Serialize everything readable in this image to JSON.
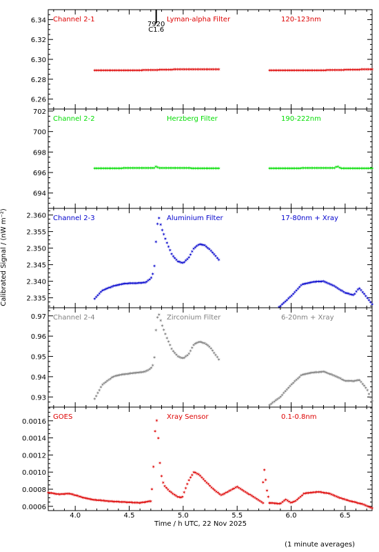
{
  "footer_note": "(1 minute averages)",
  "xlabel": "Time / h UTC, 22 Nov 2025",
  "ylabel": "Calibrated Signal / (nW m⁻²)",
  "event_marker": {
    "x": 4.75,
    "label_top": "7920",
    "label_bottom": "C1.6"
  },
  "chart_data": [
    {
      "type": "scatter",
      "channel": "Channel 2-1",
      "filter": "Lyman-alpha Filter",
      "band": "120-123nm",
      "color": "#dd0000",
      "xlim": [
        3.75,
        6.75
      ],
      "ylim": [
        6.25,
        6.35
      ],
      "xticks": [
        4.0,
        4.5,
        5.0,
        5.5,
        6.0,
        6.5
      ],
      "yticks": [
        "6.26",
        "6.28",
        "6.30",
        "6.32",
        "6.34"
      ],
      "segments": [
        {
          "x0": 4.18,
          "x1": 5.33,
          "n": 70,
          "keys": [
            [
              4.18,
              6.289
            ],
            [
              4.6,
              6.289
            ],
            [
              5.0,
              6.29
            ],
            [
              5.33,
              6.29
            ]
          ]
        },
        {
          "x0": 5.8,
          "x1": 6.75,
          "n": 58,
          "keys": [
            [
              5.8,
              6.289
            ],
            [
              6.3,
              6.289
            ],
            [
              6.75,
              6.29
            ]
          ]
        }
      ]
    },
    {
      "type": "scatter",
      "channel": "Channel 2-2",
      "filter": "Herzberg Filter",
      "band": "190-222nm",
      "color": "#00dd00",
      "xlim": [
        3.75,
        6.75
      ],
      "ylim": [
        692.5,
        702.2
      ],
      "xticks": [
        4.0,
        4.5,
        5.0,
        5.5,
        6.0,
        6.5
      ],
      "yticks": [
        "694",
        "696",
        "698",
        "700",
        "702"
      ],
      "segments": [
        {
          "x0": 4.18,
          "x1": 5.33,
          "n": 70,
          "keys": [
            [
              4.18,
              696.4
            ],
            [
              4.73,
              696.45
            ],
            [
              4.75,
              696.6
            ],
            [
              4.77,
              696.45
            ],
            [
              5.33,
              696.4
            ]
          ]
        },
        {
          "x0": 5.8,
          "x1": 6.75,
          "n": 58,
          "keys": [
            [
              5.8,
              696.4
            ],
            [
              6.4,
              696.45
            ],
            [
              6.43,
              696.6
            ],
            [
              6.46,
              696.4
            ],
            [
              6.75,
              696.4
            ]
          ]
        }
      ]
    },
    {
      "type": "scatter",
      "channel": "Channel 2-3",
      "filter": "Aluminium Filter",
      "band": "17-80nm + Xray",
      "color": "#0000cc",
      "xlim": [
        3.75,
        6.75
      ],
      "ylim": [
        2.332,
        2.362
      ],
      "xticks": [
        4.0,
        4.5,
        5.0,
        5.5,
        6.0,
        6.5
      ],
      "yticks": [
        "2.335",
        "2.340",
        "2.345",
        "2.350",
        "2.355",
        "2.360"
      ],
      "segments": [
        {
          "x0": 4.18,
          "x1": 5.33,
          "n": 80,
          "keys": [
            [
              4.18,
              2.3347
            ],
            [
              4.25,
              2.3372
            ],
            [
              4.35,
              2.3385
            ],
            [
              4.45,
              2.3393
            ],
            [
              4.55,
              2.3394
            ],
            [
              4.65,
              2.3396
            ],
            [
              4.7,
              2.3408
            ],
            [
              4.73,
              2.343
            ],
            [
              4.75,
              2.353
            ],
            [
              4.77,
              2.36
            ],
            [
              4.8,
              2.356
            ],
            [
              4.85,
              2.3515
            ],
            [
              4.9,
              2.3478
            ],
            [
              4.95,
              2.346
            ],
            [
              5.0,
              2.3455
            ],
            [
              5.05,
              2.347
            ],
            [
              5.1,
              2.35
            ],
            [
              5.15,
              2.3512
            ],
            [
              5.2,
              2.3508
            ],
            [
              5.25,
              2.3495
            ],
            [
              5.33,
              2.3465
            ]
          ]
        },
        {
          "x0": 5.8,
          "x1": 6.75,
          "n": 66,
          "keys": [
            [
              5.8,
              2.3305
            ],
            [
              5.9,
              2.3325
            ],
            [
              6.0,
              2.3355
            ],
            [
              6.1,
              2.339
            ],
            [
              6.2,
              2.3398
            ],
            [
              6.3,
              2.34
            ],
            [
              6.4,
              2.3385
            ],
            [
              6.5,
              2.3365
            ],
            [
              6.58,
              2.3358
            ],
            [
              6.63,
              2.338
            ],
            [
              6.7,
              2.3352
            ],
            [
              6.75,
              2.333
            ]
          ]
        }
      ]
    },
    {
      "type": "scatter",
      "channel": "Channel 2-4",
      "filter": "Zirconium Filter",
      "band": "6-20nm + Xray",
      "color": "#808080",
      "xlim": [
        3.75,
        6.75
      ],
      "ylim": [
        0.925,
        0.974
      ],
      "xticks": [
        4.0,
        4.5,
        5.0,
        5.5,
        6.0,
        6.5
      ],
      "yticks": [
        "0.93",
        "0.94",
        "0.95",
        "0.96",
        "0.97"
      ],
      "segments": [
        {
          "x0": 4.18,
          "x1": 5.33,
          "n": 80,
          "keys": [
            [
              4.18,
              0.929
            ],
            [
              4.25,
              0.936
            ],
            [
              4.35,
              0.94
            ],
            [
              4.45,
              0.9412
            ],
            [
              4.55,
              0.9418
            ],
            [
              4.65,
              0.9425
            ],
            [
              4.7,
              0.944
            ],
            [
              4.73,
              0.9465
            ],
            [
              4.75,
              0.965
            ],
            [
              4.77,
              0.972
            ],
            [
              4.8,
              0.966
            ],
            [
              4.85,
              0.959
            ],
            [
              4.9,
              0.953
            ],
            [
              4.95,
              0.95
            ],
            [
              5.0,
              0.949
            ],
            [
              5.05,
              0.951
            ],
            [
              5.1,
              0.956
            ],
            [
              5.15,
              0.9572
            ],
            [
              5.2,
              0.9565
            ],
            [
              5.25,
              0.9545
            ],
            [
              5.33,
              0.9485
            ]
          ]
        },
        {
          "x0": 5.8,
          "x1": 6.75,
          "n": 66,
          "keys": [
            [
              5.8,
              0.926
            ],
            [
              5.9,
              0.93
            ],
            [
              6.0,
              0.936
            ],
            [
              6.1,
              0.941
            ],
            [
              6.2,
              0.942
            ],
            [
              6.3,
              0.9425
            ],
            [
              6.4,
              0.9405
            ],
            [
              6.5,
              0.938
            ],
            [
              6.58,
              0.9378
            ],
            [
              6.63,
              0.9385
            ],
            [
              6.7,
              0.934
            ],
            [
              6.75,
              0.928
            ]
          ]
        }
      ]
    },
    {
      "type": "scatter",
      "channel": "GOES",
      "filter": "Xray Sensor",
      "band": "0.1-0.8nm",
      "color": "#dd0000",
      "xlim": [
        3.75,
        6.75
      ],
      "ylim": [
        0.00055,
        0.00176
      ],
      "xticks": [
        4.0,
        4.5,
        5.0,
        5.5,
        6.0,
        6.5
      ],
      "xticklabels": [
        "4.0",
        "4.5",
        "5.0",
        "5.5",
        "6.0",
        "6.5"
      ],
      "yticks": [
        "0.0006",
        "0.0008",
        "0.0010",
        "0.0012",
        "0.0014",
        "0.0016"
      ],
      "segments": [
        {
          "x0": 3.75,
          "x1": 4.7,
          "n": 64,
          "keys": [
            [
              3.75,
              0.00076
            ],
            [
              3.85,
              0.00074
            ],
            [
              3.95,
              0.00075
            ],
            [
              4.05,
              0.00071
            ],
            [
              4.15,
              0.00068
            ],
            [
              4.3,
              0.00066
            ],
            [
              4.45,
              0.00065
            ],
            [
              4.6,
              0.00064
            ],
            [
              4.7,
              0.00066
            ]
          ]
        },
        {
          "x0": 4.71,
          "x1": 5.74,
          "n": 70,
          "keys": [
            [
              4.71,
              0.0008
            ],
            [
              4.73,
              0.00115
            ],
            [
              4.745,
              0.00165
            ],
            [
              4.76,
              0.00158
            ],
            [
              4.775,
              0.0013
            ],
            [
              4.79,
              0.001
            ],
            [
              4.82,
              0.00085
            ],
            [
              4.88,
              0.00077
            ],
            [
              4.95,
              0.00071
            ],
            [
              4.99,
              0.0007
            ],
            [
              5.05,
              0.0009
            ],
            [
              5.1,
              0.001
            ],
            [
              5.15,
              0.00097
            ],
            [
              5.2,
              0.0009
            ],
            [
              5.28,
              0.0008
            ],
            [
              5.35,
              0.00073
            ],
            [
              5.4,
              0.00076
            ],
            [
              5.5,
              0.00083
            ],
            [
              5.55,
              0.00079
            ],
            [
              5.65,
              0.00071
            ],
            [
              5.74,
              0.00064
            ]
          ]
        },
        {
          "x0": 5.74,
          "x1": 5.8,
          "n": 6,
          "keys": [
            [
              5.74,
              0.00088
            ],
            [
              5.75,
              0.00104
            ],
            [
              5.76,
              0.00097
            ],
            [
              5.77,
              0.00082
            ],
            [
              5.79,
              0.0007
            ],
            [
              5.8,
              0.00064
            ]
          ]
        },
        {
          "x0": 5.8,
          "x1": 6.75,
          "n": 64,
          "keys": [
            [
              5.8,
              0.00064
            ],
            [
              5.9,
              0.00063
            ],
            [
              5.95,
              0.00068
            ],
            [
              6.0,
              0.00064
            ],
            [
              6.05,
              0.00067
            ],
            [
              6.12,
              0.00075
            ],
            [
              6.25,
              0.00077
            ],
            [
              6.35,
              0.00075
            ],
            [
              6.45,
              0.0007
            ],
            [
              6.55,
              0.00066
            ],
            [
              6.65,
              0.00063
            ],
            [
              6.75,
              0.00058
            ]
          ]
        }
      ]
    }
  ]
}
